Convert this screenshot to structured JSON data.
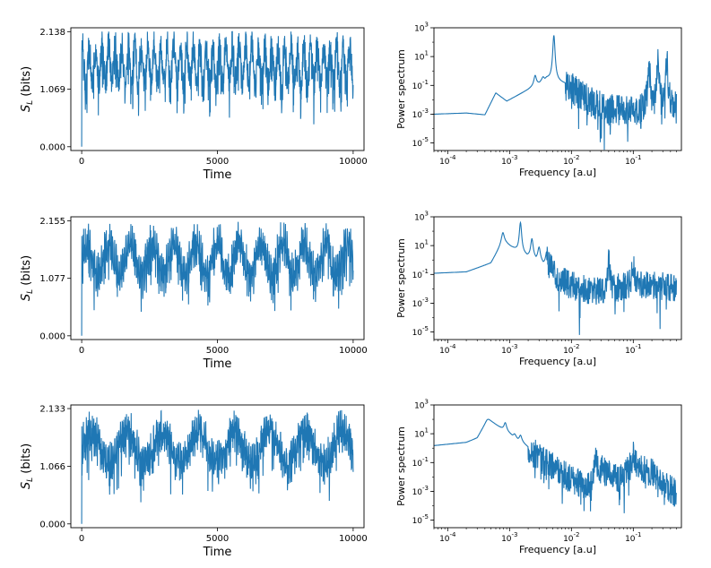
{
  "chart_data": [
    {
      "type": "line",
      "id": "time-1",
      "xlabel": "Time",
      "ylabel": "S_L (bits)",
      "xlim": [
        -400,
        10400
      ],
      "ylim": [
        -0.07,
        2.21
      ],
      "yscale": "linear",
      "xticks": [
        0,
        5000,
        10000
      ],
      "xtick_labels": [
        "0",
        "5000",
        "10000"
      ],
      "yticks": [
        0.0,
        1.069,
        2.138
      ],
      "ytick_labels": [
        "0.000",
        "1.069",
        "2.138"
      ],
      "series": [
        {
          "name": "S_L",
          "color": "#1f77b4",
          "signal": {
            "kind": "time",
            "mean": 1.55,
            "slow_amp": 0.0,
            "slow_period": 0,
            "fast_amp": 0.35,
            "fast_period": 240,
            "noise": 0.28,
            "dips": 0.25,
            "start": 0.0,
            "max": 2.138,
            "min": 0.35
          }
        }
      ]
    },
    {
      "type": "line",
      "id": "spec-1",
      "xlabel": "Frequency [a.u]",
      "ylabel": "Power spectrum",
      "xscale": "log",
      "yscale": "log",
      "xlim": [
        6e-05,
        0.6
      ],
      "ylim": [
        3e-06,
        1000
      ],
      "xticks": [
        0.0001,
        0.001,
        0.01,
        0.1
      ],
      "xtick_labels": [
        "10^-4",
        "10^-3",
        "10^-2",
        "10^-1"
      ],
      "yticks": [
        1e-05,
        0.001,
        0.1,
        10,
        1000
      ],
      "ytick_labels": [
        "10^-5",
        "10^-3",
        "10^-1",
        "10^1",
        "10^3"
      ],
      "series": [
        {
          "name": "power",
          "color": "#1f77b4",
          "signal": {
            "kind": "spectrum",
            "base": [
              [
                6e-05,
                0.001
              ],
              [
                0.0002,
                0.0012
              ],
              [
                0.0004,
                0.0009
              ],
              [
                0.0006,
                0.03
              ],
              [
                0.0009,
                0.008
              ],
              [
                0.002,
                0.05
              ],
              [
                0.004,
                0.3
              ],
              [
                0.01,
                0.1
              ],
              [
                0.03,
                0.005
              ],
              [
                0.1,
                0.003
              ],
              [
                0.2,
                0.005
              ],
              [
                0.5,
                0.004
              ]
            ],
            "peaks": [
              [
                0.0052,
                300
              ],
              [
                0.0026,
                0.5
              ],
              [
                0.0035,
                0.4
              ],
              [
                0.18,
                5
              ],
              [
                0.25,
                10
              ],
              [
                0.35,
                8
              ]
            ],
            "noise_from": 0.008,
            "noise_db": 2.2
          }
        }
      ]
    },
    {
      "type": "line",
      "id": "time-2",
      "xlabel": "Time",
      "ylabel": "S_L (bits)",
      "xlim": [
        -400,
        10400
      ],
      "ylim": [
        -0.07,
        2.23
      ],
      "yscale": "linear",
      "xticks": [
        0,
        5000,
        10000
      ],
      "xtick_labels": [
        "0",
        "5000",
        "10000"
      ],
      "yticks": [
        0.0,
        1.077,
        2.155
      ],
      "ytick_labels": [
        "0.000",
        "1.077",
        "2.155"
      ],
      "series": [
        {
          "name": "S_L",
          "color": "#1f77b4",
          "signal": {
            "kind": "time",
            "mean": 1.45,
            "slow_amp": 0.3,
            "slow_period": 800,
            "fast_amp": 0.2,
            "fast_period": 60,
            "noise": 0.25,
            "dips": 0.15,
            "start": 0.0,
            "max": 2.155,
            "min": 0.45
          }
        }
      ]
    },
    {
      "type": "line",
      "id": "spec-2",
      "xlabel": "Frequency [a.u]",
      "ylabel": "Power spectrum",
      "xscale": "log",
      "yscale": "log",
      "xlim": [
        6e-05,
        0.6
      ],
      "ylim": [
        3e-06,
        1000
      ],
      "xticks": [
        0.0001,
        0.001,
        0.01,
        0.1
      ],
      "xtick_labels": [
        "10^-4",
        "10^-3",
        "10^-2",
        "10^-1"
      ],
      "yticks": [
        1e-05,
        0.001,
        0.1,
        10,
        1000
      ],
      "ytick_labels": [
        "10^-5",
        "10^-3",
        "10^-1",
        "10^1",
        "10^3"
      ],
      "series": [
        {
          "name": "power",
          "color": "#1f77b4",
          "signal": {
            "kind": "spectrum",
            "base": [
              [
                6e-05,
                0.12
              ],
              [
                0.0002,
                0.15
              ],
              [
                0.0005,
                0.6
              ],
              [
                0.0008,
                20
              ],
              [
                0.0015,
                3
              ],
              [
                0.003,
                1.0
              ],
              [
                0.007,
                0.05
              ],
              [
                0.02,
                0.01
              ],
              [
                0.04,
                0.01
              ],
              [
                0.06,
                0.02
              ],
              [
                0.15,
                0.03
              ],
              [
                0.5,
                0.02
              ]
            ],
            "peaks": [
              [
                0.00078,
                80
              ],
              [
                0.0015,
                400
              ],
              [
                0.0023,
                30
              ],
              [
                0.003,
                8
              ],
              [
                0.004,
                4
              ],
              [
                0.0047,
                2
              ],
              [
                0.04,
                1.5
              ],
              [
                0.1,
                1.0
              ]
            ],
            "noise_from": 0.004,
            "noise_db": 2.0
          }
        }
      ]
    },
    {
      "type": "line",
      "id": "time-3",
      "xlabel": "Time",
      "ylabel": "S_L (bits)",
      "xlim": [
        -400,
        10400
      ],
      "ylim": [
        -0.07,
        2.2
      ],
      "yscale": "linear",
      "xticks": [
        0,
        5000,
        10000
      ],
      "xtick_labels": [
        "0",
        "5000",
        "10000"
      ],
      "yticks": [
        0.0,
        1.066,
        2.133
      ],
      "ytick_labels": [
        "0.000",
        "1.066",
        "2.133"
      ],
      "series": [
        {
          "name": "S_L",
          "color": "#1f77b4",
          "signal": {
            "kind": "time",
            "mean": 1.42,
            "slow_amp": 0.3,
            "slow_period": 1320,
            "fast_amp": 0.18,
            "fast_period": 55,
            "noise": 0.25,
            "dips": 0.15,
            "start": 0.0,
            "max": 2.133,
            "min": 0.4
          }
        }
      ]
    },
    {
      "type": "line",
      "id": "spec-3",
      "xlabel": "Frequency [a.u]",
      "ylabel": "Power spectrum",
      "xscale": "log",
      "yscale": "log",
      "xlim": [
        6e-05,
        0.6
      ],
      "ylim": [
        3e-06,
        1000
      ],
      "xticks": [
        0.0001,
        0.001,
        0.01,
        0.1
      ],
      "xtick_labels": [
        "10^-4",
        "10^-3",
        "10^-2",
        "10^-1"
      ],
      "yticks": [
        1e-05,
        0.001,
        0.1,
        10,
        1000
      ],
      "ytick_labels": [
        "10^-5",
        "10^-3",
        "10^-1",
        "10^1",
        "10^3"
      ],
      "series": [
        {
          "name": "power",
          "color": "#1f77b4",
          "signal": {
            "kind": "spectrum",
            "base": [
              [
                6e-05,
                1.5
              ],
              [
                0.0002,
                2.5
              ],
              [
                0.0003,
                5
              ],
              [
                0.00045,
                100
              ],
              [
                0.0008,
                20
              ],
              [
                0.0015,
                3
              ],
              [
                0.003,
                0.3
              ],
              [
                0.006,
                0.05
              ],
              [
                0.01,
                0.01
              ],
              [
                0.02,
                0.003
              ],
              [
                0.03,
                0.05
              ],
              [
                0.06,
                0.01
              ],
              [
                0.1,
                0.1
              ],
              [
                0.2,
                0.03
              ],
              [
                0.5,
                0.001
              ]
            ],
            "peaks": [
              [
                0.00045,
                100
              ],
              [
                0.00085,
                60
              ],
              [
                0.0012,
                10
              ],
              [
                0.0015,
                8
              ],
              [
                0.0026,
                0.7
              ],
              [
                0.025,
                0.3
              ],
              [
                0.1,
                0.5
              ]
            ],
            "noise_from": 0.002,
            "noise_db": 2.0
          }
        }
      ]
    }
  ]
}
